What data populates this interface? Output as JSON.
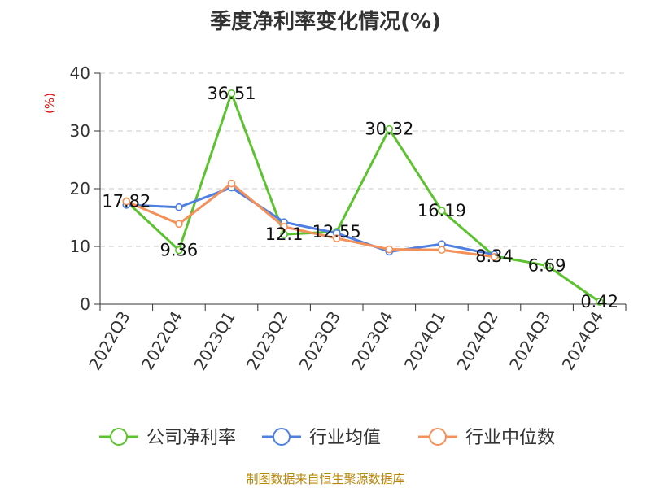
{
  "chart_data": {
    "type": "line",
    "title": "季度净利率变化情况(%)",
    "ylabel": "(%)",
    "xlabel": "",
    "ylim": [
      0,
      40
    ],
    "yticks": [
      0,
      10,
      20,
      30,
      40
    ],
    "grid": true,
    "legend_position": "bottom",
    "categories": [
      "2022Q3",
      "2022Q4",
      "2023Q1",
      "2023Q2",
      "2023Q3",
      "2023Q4",
      "2024Q1",
      "2024Q2",
      "2024Q3",
      "2024Q4"
    ],
    "series": [
      {
        "name": "公司净利率",
        "color": "#5cc230",
        "values": [
          17.82,
          9.36,
          36.51,
          12.1,
          12.55,
          30.32,
          16.19,
          8.34,
          6.69,
          0.42
        ],
        "labels": [
          "17.82",
          "9.36",
          "36.51",
          "12.1",
          "12.55",
          "30.32",
          "16.19",
          "8.34",
          "6.69",
          "0.42"
        ]
      },
      {
        "name": "行业均值",
        "color": "#4f7fe0",
        "values": [
          17.2,
          16.8,
          20.2,
          14.2,
          12.3,
          9.1,
          10.4,
          8.6,
          null,
          null
        ]
      },
      {
        "name": "行业中位数",
        "color": "#f4915a",
        "values": [
          17.8,
          13.9,
          20.9,
          13.4,
          11.4,
          9.5,
          9.4,
          8.2,
          null,
          null
        ]
      }
    ]
  },
  "source_text": "制图数据来自恒生聚源数据库"
}
